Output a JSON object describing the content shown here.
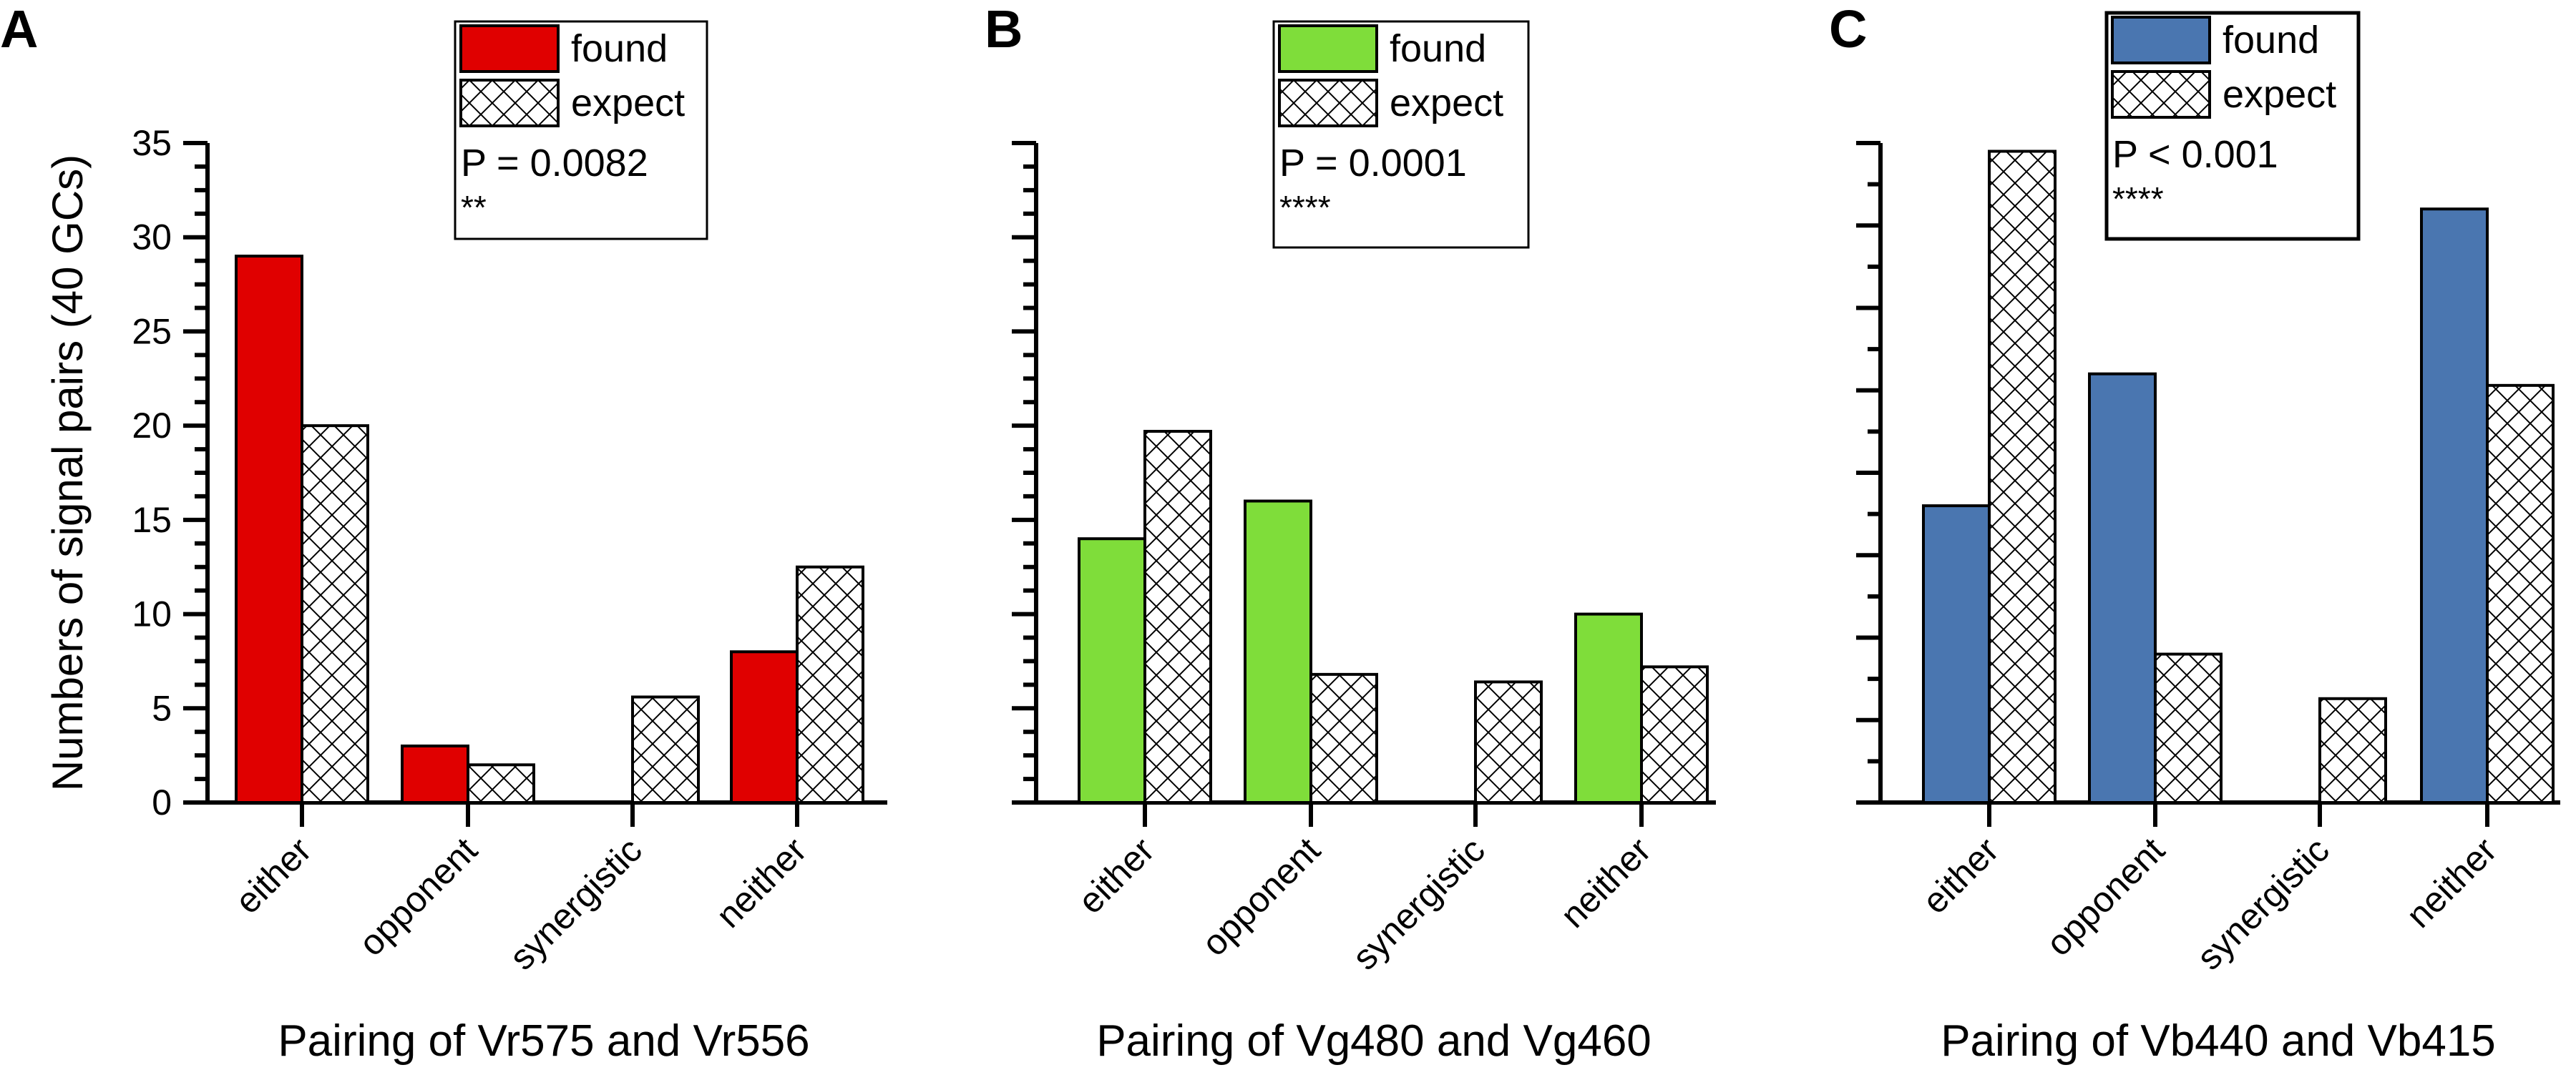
{
  "chart_data": [
    {
      "type": "bar",
      "panel_label": "A",
      "categories": [
        "either",
        "opponent",
        "synergistic",
        "neither"
      ],
      "series": [
        {
          "name": "found",
          "values": [
            29,
            3,
            0,
            8
          ],
          "color": "#e00000",
          "pattern": "solid"
        },
        {
          "name": "expect",
          "values": [
            20,
            2,
            5.6,
            12.5
          ],
          "color": "#ffffff",
          "pattern": "crosshatch"
        }
      ],
      "annotation_p": "P =  0.0082",
      "annotation_sig": "**",
      "xlabel": "Pairing of Vr575 and Vr556",
      "ylabel": "Numbers of signal pairs (40 GCs)",
      "ylim": [
        0,
        35
      ],
      "yticks": [
        0,
        5,
        10,
        15,
        20,
        25,
        30,
        35
      ],
      "legend_position": "top-right",
      "grid": false
    },
    {
      "type": "bar",
      "panel_label": "B",
      "categories": [
        "either",
        "opponent",
        "synergistic",
        "neither"
      ],
      "series": [
        {
          "name": "found",
          "values": [
            14,
            16,
            0,
            10
          ],
          "color": "#7fdd3a",
          "pattern": "solid"
        },
        {
          "name": "expect",
          "values": [
            19.7,
            6.8,
            6.4,
            7.2
          ],
          "color": "#ffffff",
          "pattern": "crosshatch"
        }
      ],
      "annotation_p": "P =  0.0001",
      "annotation_sig": "****",
      "xlabel": "Pairing of Vg480 and Vg460",
      "ylabel": "",
      "ylim": [
        0,
        35
      ],
      "legend_position": "top-right",
      "grid": false
    },
    {
      "type": "bar",
      "panel_label": "C",
      "categories": [
        "either",
        "opponent",
        "synergistic",
        "neither"
      ],
      "series": [
        {
          "name": "found",
          "values": [
            18,
            26,
            0,
            36
          ],
          "color": "#4a76b0",
          "pattern": "solid"
        },
        {
          "name": "expect",
          "values": [
            39.5,
            9,
            6.3,
            25.3
          ],
          "color": "#ffffff",
          "pattern": "crosshatch"
        }
      ],
      "annotation_p": "P < 0.001",
      "annotation_sig": "****",
      "xlabel": "Pairing of Vb440 and Vb415",
      "ylabel": "",
      "ylim": [
        0,
        40
      ],
      "legend_position": "top-right",
      "grid": false
    }
  ]
}
